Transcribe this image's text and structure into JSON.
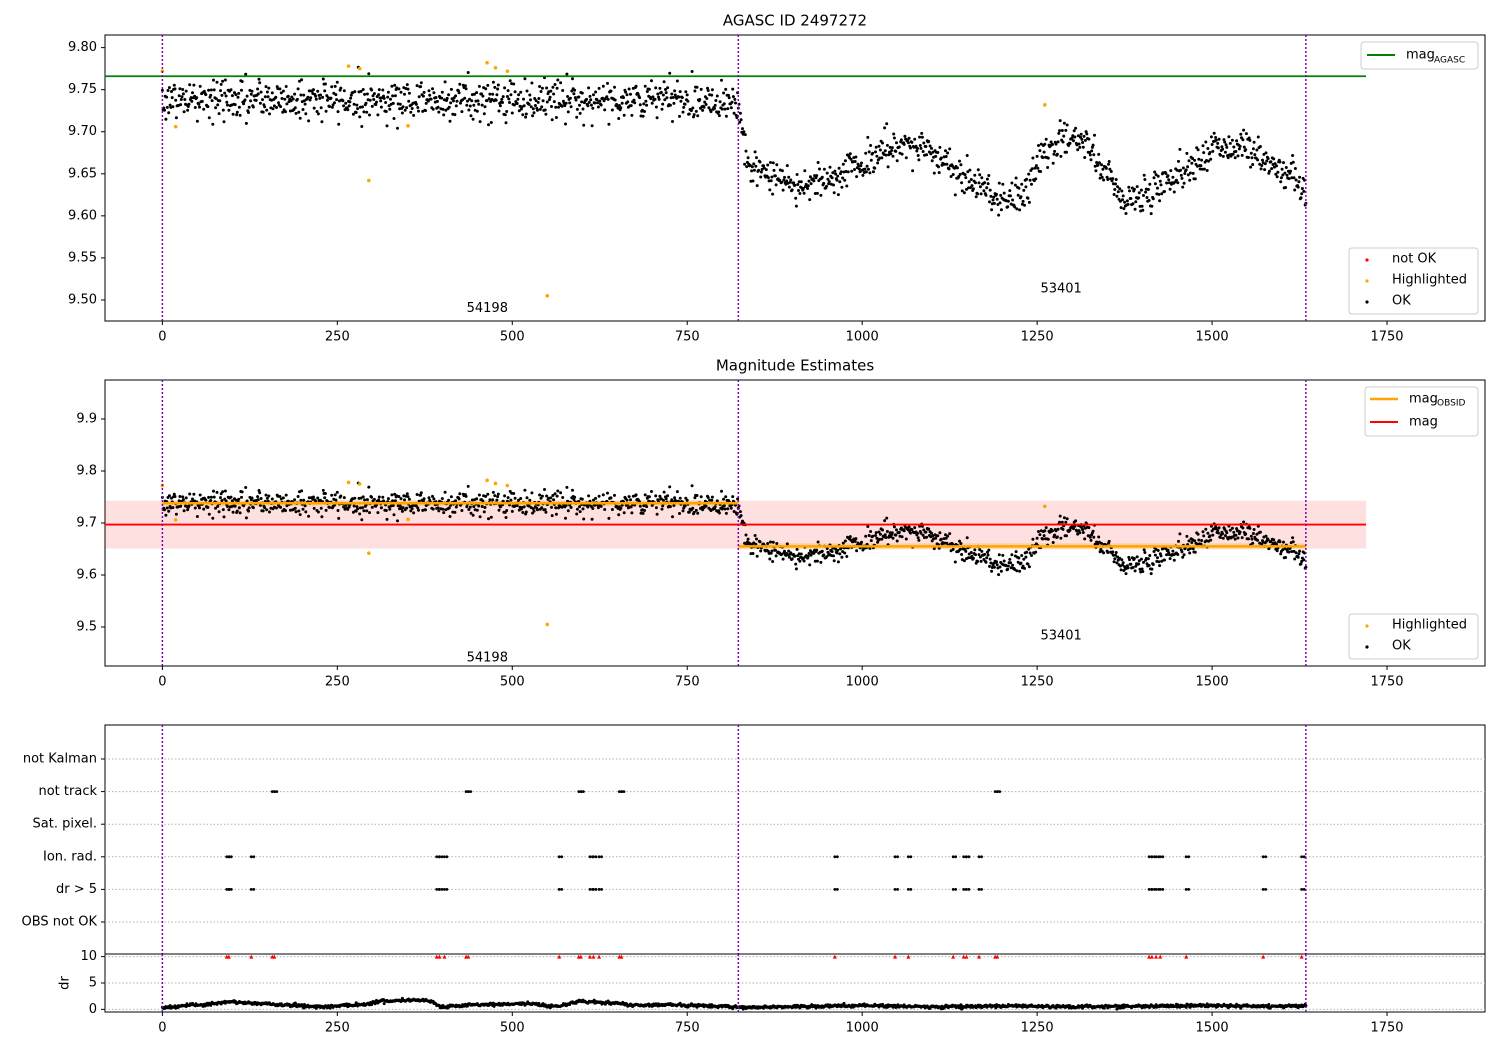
{
  "chart_data": [
    {
      "type": "scatter",
      "title": "AGASC ID 2497272",
      "xlim": [
        -82,
        1890
      ],
      "ylim": [
        9.475,
        9.815
      ],
      "xticks": [
        0,
        250,
        500,
        750,
        1000,
        1250,
        1500,
        1750
      ],
      "yticks": [
        9.5,
        9.55,
        9.6,
        9.65,
        9.7,
        9.75,
        9.8
      ],
      "hlines": [
        {
          "name": "mag_AGASC",
          "y": 9.766,
          "x_range": [
            -82,
            1720
          ],
          "color": "#008000"
        }
      ],
      "vlines": [
        0,
        823,
        1634
      ],
      "annotations": [
        {
          "text": "54198",
          "x": 410,
          "y": 9.49
        },
        {
          "text": "53401",
          "x": 1230,
          "y": 9.513
        }
      ],
      "legends": [
        {
          "position": "top-right",
          "entries": [
            {
              "label": "mag",
              "sub": "AGASC",
              "kind": "line",
              "color": "#008000"
            }
          ]
        },
        {
          "position": "bottom-right",
          "entries": [
            {
              "label": "not OK",
              "kind": "point",
              "color": "#ff0000"
            },
            {
              "label": "Highlighted",
              "kind": "point",
              "color": "#ffa500"
            },
            {
              "label": "OK",
              "kind": "point",
              "color": "#000000"
            }
          ]
        }
      ],
      "highlighted_points": [
        [
          0,
          9.772
        ],
        [
          19,
          9.706
        ],
        [
          266,
          9.778
        ],
        [
          282,
          9.775
        ],
        [
          295,
          9.642
        ],
        [
          351,
          9.707
        ],
        [
          464,
          9.782
        ],
        [
          476,
          9.776
        ],
        [
          493,
          9.772
        ],
        [
          550,
          9.505
        ],
        [
          1261,
          9.732
        ]
      ],
      "ok_trend": {
        "n_points": 1634,
        "segments": [
          {
            "x": [
              0,
              822
            ],
            "mean": 9.738,
            "scatter": 0.012
          },
          {
            "x": [
              823,
              1634
            ],
            "knots_x": [
              823,
              840,
              880,
              920,
              960,
              1000,
              1040,
              1080,
              1120,
              1160,
              1200,
              1230,
              1260,
              1290,
              1320,
              1350,
              1380,
              1410,
              1440,
              1480,
              1510,
              1540,
              1580,
              1610,
              1634
            ],
            "knots_y": [
              9.725,
              9.655,
              9.643,
              9.637,
              9.648,
              9.662,
              9.68,
              9.683,
              9.664,
              9.639,
              9.62,
              9.625,
              9.675,
              9.69,
              9.685,
              9.65,
              9.618,
              9.627,
              9.645,
              9.665,
              9.683,
              9.682,
              9.667,
              9.648,
              9.63
            ],
            "scatter": 0.01
          }
        ]
      }
    },
    {
      "type": "scatter",
      "title": "Magnitude Estimates",
      "xlim": [
        -82,
        1890
      ],
      "ylim": [
        9.425,
        9.975
      ],
      "xticks": [
        0,
        250,
        500,
        750,
        1000,
        1250,
        1500,
        1750
      ],
      "yticks": [
        9.5,
        9.6,
        9.7,
        9.8,
        9.9
      ],
      "hlines": [
        {
          "name": "mag",
          "y": 9.697,
          "x_range": [
            -82,
            1720
          ],
          "color": "#ff0000",
          "band": [
            9.651,
            9.743
          ]
        }
      ],
      "obsid_segments": [
        {
          "x_range": [
            0,
            823
          ],
          "y": 9.738,
          "band": 0.006
        },
        {
          "x_range": [
            823,
            1634
          ],
          "y": 9.655,
          "band": 0.006
        }
      ],
      "vlines": [
        0,
        823,
        1634
      ],
      "annotations": [
        {
          "text": "54198",
          "x": 410,
          "y": 9.44
        },
        {
          "text": "53401",
          "x": 1230,
          "y": 9.483
        }
      ],
      "legends": [
        {
          "position": "top-right",
          "entries": [
            {
              "label": "mag",
              "sub": "OBSID",
              "kind": "line",
              "color": "#ffa500"
            },
            {
              "label": "mag",
              "kind": "line",
              "color": "#ff0000"
            }
          ]
        },
        {
          "position": "bottom-right",
          "entries": [
            {
              "label": "Highlighted",
              "kind": "point",
              "color": "#ffa500"
            },
            {
              "label": "OK",
              "kind": "point",
              "color": "#000000"
            }
          ]
        }
      ]
    },
    {
      "type": "scatter",
      "title": "",
      "xlim": [
        -82,
        1890
      ],
      "category_labels": [
        "not Kalman",
        "not track",
        "Sat. pixel.",
        "Ion. rad.",
        "dr > 5",
        "OBS not OK"
      ],
      "vlines": [
        0,
        823,
        1634
      ],
      "flags": {
        "not track": [
          157,
          160,
          434,
          437,
          595,
          598,
          653,
          656,
          1190,
          1193
        ],
        "Ion. rad.": [
          92,
          95,
          127,
          392,
          396,
          403,
          567,
          611,
          616,
          624,
          961,
          1047,
          1066,
          1130,
          1145,
          1149,
          1167,
          1410,
          1414,
          1420,
          1426,
          1463,
          1573,
          1628
        ],
        "dr > 5": [
          92,
          95,
          127,
          392,
          396,
          403,
          567,
          611,
          616,
          624,
          961,
          1047,
          1066,
          1130,
          1145,
          1149,
          1167,
          1410,
          1414,
          1420,
          1426,
          1463,
          1573,
          1628
        ]
      }
    },
    {
      "type": "line",
      "title": "",
      "xlim": [
        -82,
        1890
      ],
      "ylim": [
        -0.5,
        10.5
      ],
      "ylabel": "dr",
      "yticks": [
        0,
        5,
        10
      ],
      "xticks": [
        0,
        250,
        500,
        750,
        1000,
        1250,
        1500,
        1750
      ],
      "vlines": [
        0,
        823,
        1634
      ],
      "clipped_at": 10,
      "clipped_points": [
        92,
        95,
        127,
        157,
        160,
        392,
        396,
        403,
        434,
        437,
        567,
        595,
        598,
        611,
        616,
        624,
        653,
        656,
        961,
        1047,
        1066,
        1130,
        1145,
        1149,
        1167,
        1190,
        1193,
        1410,
        1414,
        1420,
        1426,
        1463,
        1573,
        1628
      ],
      "knots_x": [
        0,
        60,
        100,
        140,
        180,
        230,
        280,
        320,
        360,
        380,
        400,
        460,
        520,
        560,
        600,
        640,
        680,
        720,
        760,
        800,
        823,
        900,
        1000,
        1100,
        1200,
        1300,
        1400,
        1500,
        1600,
        1634
      ],
      "knots_y": [
        0.4,
        0.9,
        1.4,
        1.1,
        0.8,
        0.5,
        0.9,
        1.6,
        1.8,
        1.7,
        0.5,
        0.9,
        1.1,
        0.6,
        1.5,
        1.2,
        0.8,
        0.9,
        0.7,
        0.6,
        0.4,
        0.5,
        0.7,
        0.5,
        0.6,
        0.5,
        0.6,
        0.7,
        0.6,
        0.8
      ]
    }
  ]
}
